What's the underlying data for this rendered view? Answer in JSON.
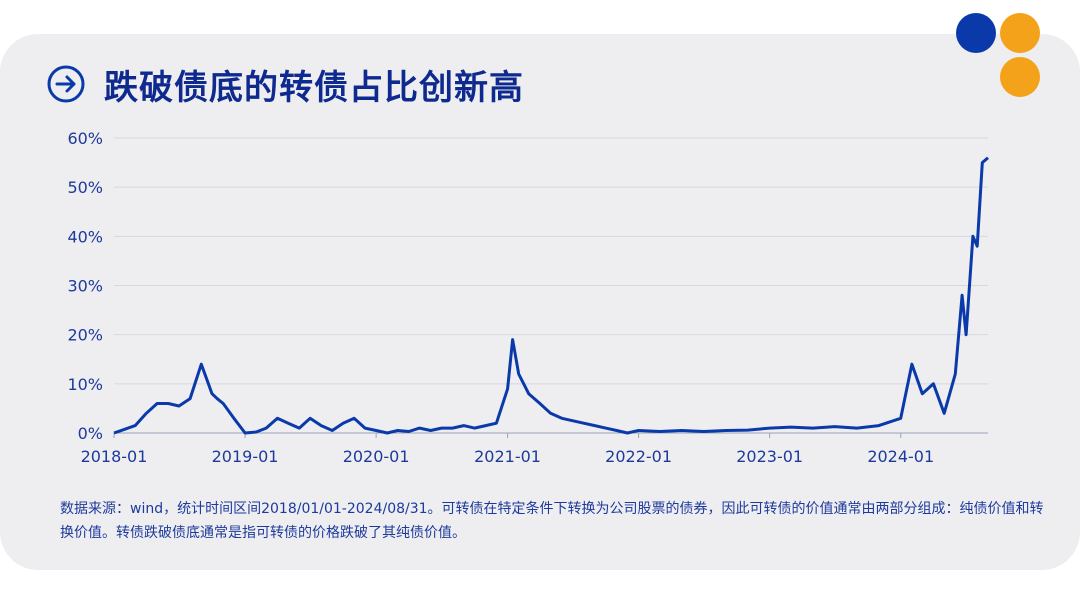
{
  "header": {
    "title": "跌破债底的转债占比创新高",
    "arrow_icon": "arrow-right-circle-icon",
    "colors": {
      "blue": "#0a3aaa",
      "orange": "#f5a21b",
      "title": "#0e2a8f"
    }
  },
  "footnote": "数据来源：wind，统计时间区间2018/01/01-2024/08/31。可转债在特定条件下转换为公司股票的债券，因此可转债的价值通常由两部分组成：纯债价值和转换价值。转债跌破债底通常是指可转债的价格跌破了其纯债价值。",
  "chart_data": {
    "type": "line",
    "title": "",
    "xlabel": "",
    "ylabel": "",
    "x_ticks": [
      "2018-01",
      "2019-01",
      "2020-01",
      "2021-01",
      "2022-01",
      "2023-01",
      "2024-01"
    ],
    "y_ticks": [
      "0%",
      "10%",
      "20%",
      "30%",
      "40%",
      "50%",
      "60%"
    ],
    "xlim": [
      "2018-01",
      "2024-08-31"
    ],
    "ylim": [
      0,
      60
    ],
    "grid": true,
    "line_color": "#0a3aaa",
    "series": [
      {
        "x": [
          "2018-01",
          "2018-03",
          "2018-04",
          "2018-05",
          "2018-06",
          "2018-07",
          "2018-08",
          "2018-09",
          "2018-10",
          "2018-10-15",
          "2018-11",
          "2018-12",
          "2019-01",
          "2019-02",
          "2019-03",
          "2019-04",
          "2019-05",
          "2019-06",
          "2019-07",
          "2019-08",
          "2019-09",
          "2019-10",
          "2019-11",
          "2019-12",
          "2020-01",
          "2020-02",
          "2020-03",
          "2020-04",
          "2020-05",
          "2020-06",
          "2020-07",
          "2020-08",
          "2020-09",
          "2020-10",
          "2020-11",
          "2020-12",
          "2021-01",
          "2021-01-15",
          "2021-02",
          "2021-03",
          "2021-04",
          "2021-05",
          "2021-06",
          "2021-07",
          "2021-08",
          "2021-09",
          "2021-10",
          "2021-11",
          "2021-12",
          "2022-01",
          "2022-03",
          "2022-05",
          "2022-07",
          "2022-09",
          "2022-11",
          "2023-01",
          "2023-03",
          "2023-05",
          "2023-07",
          "2023-09",
          "2023-11",
          "2024-01",
          "2024-02",
          "2024-03",
          "2024-04",
          "2024-05",
          "2024-06",
          "2024-06-20",
          "2024-07",
          "2024-07-20",
          "2024-08",
          "2024-08-15",
          "2024-08-31"
        ],
        "y": [
          0,
          1.5,
          4,
          6,
          6,
          5.5,
          7,
          14,
          8,
          7,
          6,
          3,
          0,
          0.2,
          1,
          3,
          2,
          1,
          3,
          1.5,
          0.5,
          2,
          3,
          1,
          0.5,
          0,
          0.5,
          0.3,
          1,
          0.5,
          1,
          1,
          1.5,
          1,
          1.5,
          2,
          9,
          19,
          12,
          8,
          6,
          4,
          3,
          2.5,
          2,
          1.5,
          1,
          0.5,
          0,
          0.5,
          0.3,
          0.5,
          0.3,
          0.5,
          0.6,
          1,
          1.2,
          1,
          1.3,
          1,
          1.5,
          3,
          14,
          8,
          10,
          4,
          12,
          28,
          20,
          40,
          38,
          55,
          56
        ]
      }
    ]
  }
}
